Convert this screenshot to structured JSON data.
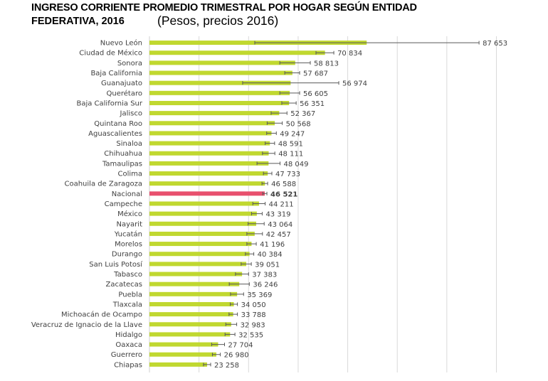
{
  "chart_data": {
    "type": "bar",
    "orientation": "horizontal",
    "title": "INGRESO CORRIENTE PROMEDIO TRIMESTRAL POR HOGAR SEGÚN ENTIDAD FEDERATIVA, 2016",
    "title_line1": "INGRESO CORRIENTE PROMEDIO TRIMESTRAL POR HOGAR SEGÚN ENTIDAD",
    "title_line2": "FEDERATIVA, 2016",
    "subtitle": "(Pesos, precios 2016)",
    "xlabel": "",
    "ylabel": "",
    "xlim": [
      0,
      140000
    ],
    "grid": true,
    "gridline_values": [
      0,
      20000,
      40000,
      60000,
      80000,
      100000,
      120000,
      140000
    ],
    "bar_color": "#C0D830",
    "highlight_color": "#E8506E",
    "error_color": "#595959",
    "categories": [
      "Nuevo León",
      "Ciudad de México",
      "Sonora",
      "Baja California",
      "Guanajuato",
      "Querétaro",
      "Baja California Sur",
      "Jalisco",
      "Quintana Roo",
      "Aguascalientes",
      "Sinaloa",
      "Chihuahua",
      "Tamaulipas",
      "Colima",
      "Coahuila de Zaragoza",
      "Nacional",
      "Campeche",
      "México",
      "Nayarit",
      "Yucatán",
      "Morelos",
      "Durango",
      "San Luis Potosí",
      "Tabasco",
      "Zacatecas",
      "Puebla",
      "Tlaxcala",
      "Michoacán de Ocampo",
      "Veracruz de Ignacio de la Llave",
      "Hidalgo",
      "Oaxaca",
      "Guerrero",
      "Chiapas"
    ],
    "values": [
      87653,
      70834,
      58813,
      57687,
      56974,
      56605,
      56351,
      52367,
      50568,
      49247,
      48591,
      48111,
      48049,
      47733,
      46588,
      46521,
      44211,
      43319,
      43064,
      42457,
      41196,
      40384,
      39051,
      37383,
      36246,
      35369,
      34050,
      33788,
      32983,
      32535,
      27704,
      26980,
      23258
    ],
    "labels": [
      "87 653",
      "70 834",
      "58 813",
      "57 687",
      "56 974",
      "56 605",
      "56 351",
      "52 367",
      "50 568",
      "49 247",
      "48 591",
      "48 111",
      "48 049",
      "47 733",
      "46 588",
      "46 521",
      "44 211",
      "43 319",
      "43 064",
      "42 457",
      "41 196",
      "40 384",
      "39 051",
      "37 383",
      "36 246",
      "35 369",
      "34 050",
      "33 788",
      "32 983",
      "32 535",
      "27 704",
      "26 980",
      "23 258"
    ],
    "error_low": [
      42500,
      67200,
      52600,
      54600,
      37600,
      52600,
      53400,
      49100,
      47500,
      47300,
      46700,
      45600,
      43400,
      46000,
      45400,
      45700,
      41700,
      41200,
      39800,
      39300,
      39300,
      38700,
      37000,
      34700,
      32200,
      32700,
      32600,
      32100,
      30800,
      30500,
      25100,
      25400,
      21800
    ],
    "error_high": [
      133000,
      74400,
      64900,
      60600,
      76400,
      60600,
      59200,
      55500,
      53600,
      51200,
      50500,
      50600,
      52700,
      49400,
      47700,
      47400,
      46700,
      45500,
      46300,
      45600,
      43100,
      42100,
      41100,
      40000,
      40300,
      38000,
      35500,
      35500,
      35200,
      34500,
      30300,
      28600,
      24700
    ],
    "highlight_category": "Nacional"
  }
}
